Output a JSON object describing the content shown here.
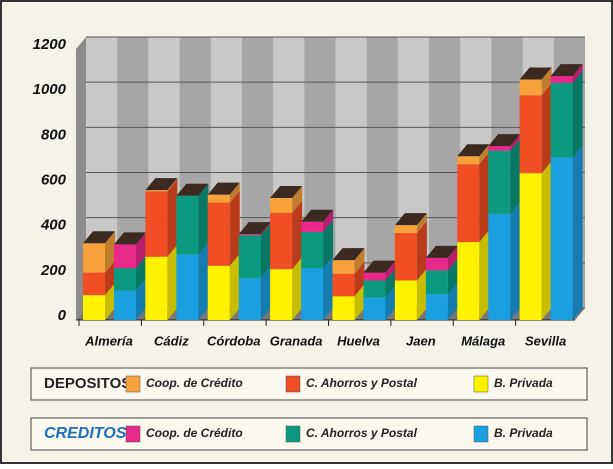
{
  "chart_data": {
    "type": "bar3d",
    "categories": [
      "Almería",
      "Cádiz",
      "Córdoba",
      "Granada",
      "Huelva",
      "Jaen",
      "Málaga",
      "Sevilla"
    ],
    "groups": [
      {
        "name": "DEPOSITOS",
        "series": [
          {
            "name": "Coop. de Crédito",
            "color": "#f7a13a",
            "values": [
              130,
              5,
              35,
              65,
              60,
              35,
              35,
              70
            ]
          },
          {
            "name": "C. Ahorros y Postal",
            "color": "#f04e23",
            "values": [
              100,
              290,
              280,
              250,
              100,
              210,
              345,
              345
            ]
          },
          {
            "name": "B. Privada",
            "color": "#fff200",
            "values": [
              110,
              280,
              240,
              225,
              105,
              175,
              345,
              650
            ]
          }
        ]
      },
      {
        "name": "CREDITOS",
        "series": [
          {
            "name": "Coop. de Crédito",
            "color": "#e8288a",
            "values": [
              105,
              0,
              5,
              45,
              35,
              55,
              20,
              30
            ]
          },
          {
            "name": "C. Ahorros y Postal",
            "color": "#0c9a7f",
            "values": [
              100,
              260,
              190,
              160,
              75,
              105,
              280,
              330
            ]
          },
          {
            "name": "B. Privada",
            "color": "#1a9fe0",
            "values": [
              130,
              290,
              185,
              230,
              100,
              115,
              470,
              720
            ]
          }
        ]
      }
    ],
    "stacked": true,
    "ylim": [
      0,
      1200
    ],
    "yticks": [
      0,
      200,
      400,
      600,
      800,
      1000,
      1200
    ],
    "grid": true
  }
}
